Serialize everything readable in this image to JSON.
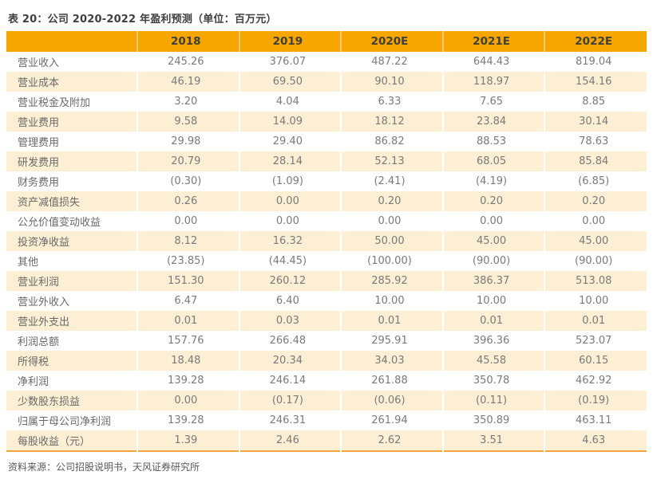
{
  "title": "表 20：公司 2020-2022 年盈利预测（单位：百万元）",
  "source": "资料来源：公司招股说明书，天风证券研究所",
  "colors": {
    "header_bg": "#f7a600",
    "alt_row_bg": "#fcefd3",
    "bottom_border": "#f2a33c",
    "title_text": "#3f3f3f",
    "body_text": "#7a7a7a"
  },
  "chart_data": {
    "type": "table",
    "title": "表 20：公司 2020-2022 年盈利预测（单位：百万元）",
    "columns": [
      "",
      "2018",
      "2019",
      "2020E",
      "2021E",
      "2022E"
    ],
    "rows": [
      {
        "label": "营业收入",
        "values": [
          "245.26",
          "376.07",
          "487.22",
          "644.43",
          "819.04"
        ]
      },
      {
        "label": "营业成本",
        "values": [
          "46.19",
          "69.50",
          "90.10",
          "118.97",
          "154.16"
        ]
      },
      {
        "label": "营业税金及附加",
        "values": [
          "3.20",
          "4.04",
          "6.33",
          "7.65",
          "8.85"
        ]
      },
      {
        "label": "营业费用",
        "values": [
          "9.58",
          "14.09",
          "18.12",
          "23.84",
          "30.14"
        ]
      },
      {
        "label": "管理费用",
        "values": [
          "29.98",
          "29.40",
          "86.82",
          "88.53",
          "78.63"
        ]
      },
      {
        "label": "研发费用",
        "values": [
          "20.79",
          "28.14",
          "52.13",
          "68.05",
          "85.84"
        ]
      },
      {
        "label": "财务费用",
        "values": [
          "(0.30)",
          "(1.09)",
          "(2.41)",
          "(4.19)",
          "(6.85)"
        ]
      },
      {
        "label": "资产减值损失",
        "values": [
          "0.26",
          "0.00",
          "0.20",
          "0.20",
          "0.20"
        ]
      },
      {
        "label": "公允价值变动收益",
        "values": [
          "0.00",
          "0.00",
          "0.00",
          "0.00",
          "0.00"
        ]
      },
      {
        "label": "投资净收益",
        "values": [
          "8.12",
          "16.32",
          "50.00",
          "45.00",
          "45.00"
        ]
      },
      {
        "label": "其他",
        "values": [
          "(23.85)",
          "(44.45)",
          "(100.00)",
          "(90.00)",
          "(90.00)"
        ]
      },
      {
        "label": "营业利润",
        "values": [
          "151.30",
          "260.12",
          "285.92",
          "386.37",
          "513.08"
        ]
      },
      {
        "label": "营业外收入",
        "values": [
          "6.47",
          "6.40",
          "10.00",
          "10.00",
          "10.00"
        ]
      },
      {
        "label": "营业外支出",
        "values": [
          "0.01",
          "0.03",
          "0.01",
          "0.01",
          "0.01"
        ]
      },
      {
        "label": "利润总额",
        "values": [
          "157.76",
          "266.48",
          "295.91",
          "396.36",
          "523.07"
        ]
      },
      {
        "label": "所得税",
        "values": [
          "18.48",
          "20.34",
          "34.03",
          "45.58",
          "60.15"
        ]
      },
      {
        "label": "净利润",
        "values": [
          "139.28",
          "246.14",
          "261.88",
          "350.78",
          "462.92"
        ]
      },
      {
        "label": "少数股东损益",
        "values": [
          "0.00",
          "(0.17)",
          "(0.06)",
          "(0.11)",
          "(0.19)"
        ]
      },
      {
        "label": "归属于母公司净利润",
        "values": [
          "139.28",
          "246.31",
          "261.94",
          "350.89",
          "463.11"
        ]
      },
      {
        "label": "每股收益（元）",
        "values": [
          "1.39",
          "2.46",
          "2.62",
          "3.51",
          "4.63"
        ]
      }
    ]
  }
}
